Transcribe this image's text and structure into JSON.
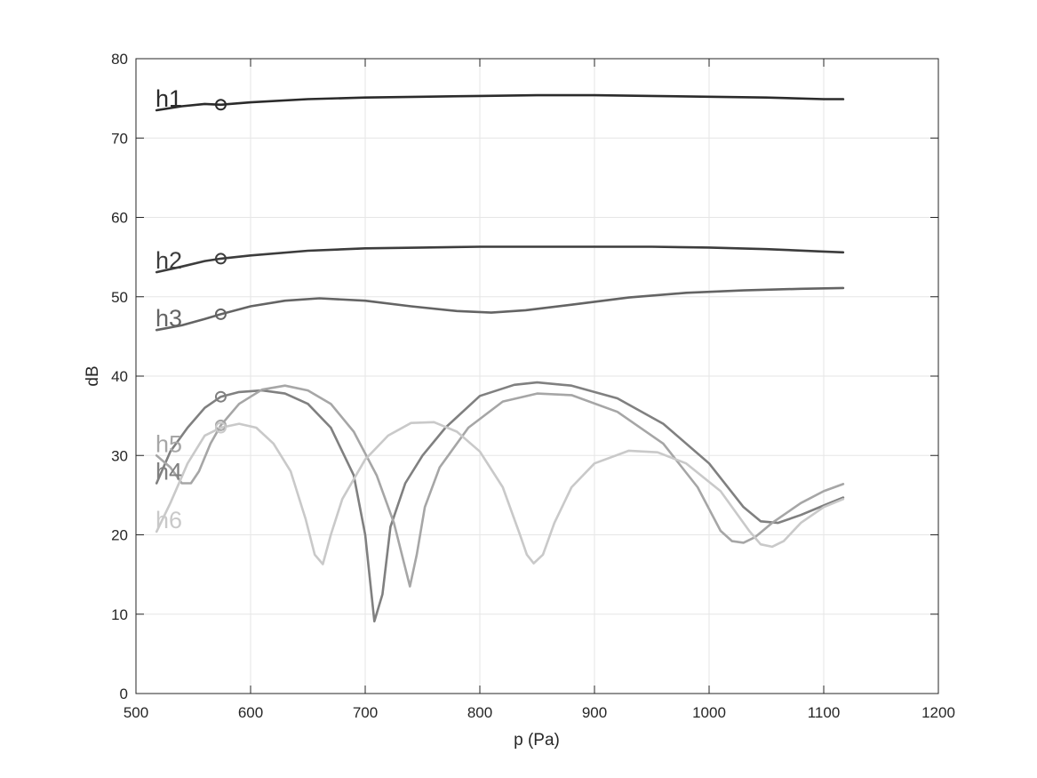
{
  "chart_data": {
    "type": "line",
    "title": "",
    "xlabel": "p (Pa)",
    "ylabel": "dB",
    "xlim": [
      500,
      1200
    ],
    "ylim": [
      0,
      80
    ],
    "xticks": [
      "500",
      "600",
      "700",
      "800",
      "900",
      "1000",
      "1100",
      "1200"
    ],
    "yticks": [
      "0",
      "10",
      "20",
      "30",
      "40",
      "50",
      "60",
      "70",
      "80"
    ],
    "grid": true,
    "legend": "none",
    "marker_x": 574,
    "series": [
      {
        "name": "h1",
        "color": "#2b2b2b",
        "points": [
          [
            518,
            73.5
          ],
          [
            540,
            74.0
          ],
          [
            560,
            74.3
          ],
          [
            574,
            74.2
          ],
          [
            600,
            74.5
          ],
          [
            650,
            74.9
          ],
          [
            700,
            75.1
          ],
          [
            750,
            75.2
          ],
          [
            800,
            75.3
          ],
          [
            850,
            75.4
          ],
          [
            900,
            75.4
          ],
          [
            950,
            75.3
          ],
          [
            1000,
            75.2
          ],
          [
            1050,
            75.1
          ],
          [
            1100,
            74.9
          ],
          [
            1117,
            74.9
          ]
        ]
      },
      {
        "name": "h2",
        "color": "#3c3c3c",
        "points": [
          [
            518,
            53.1
          ],
          [
            540,
            53.8
          ],
          [
            560,
            54.5
          ],
          [
            574,
            54.8
          ],
          [
            600,
            55.2
          ],
          [
            650,
            55.8
          ],
          [
            700,
            56.1
          ],
          [
            750,
            56.2
          ],
          [
            800,
            56.3
          ],
          [
            850,
            56.3
          ],
          [
            900,
            56.3
          ],
          [
            950,
            56.3
          ],
          [
            1000,
            56.2
          ],
          [
            1050,
            56.0
          ],
          [
            1100,
            55.7
          ],
          [
            1117,
            55.6
          ]
        ]
      },
      {
        "name": "h3",
        "color": "#646464",
        "points": [
          [
            518,
            45.8
          ],
          [
            540,
            46.4
          ],
          [
            560,
            47.2
          ],
          [
            574,
            47.8
          ],
          [
            600,
            48.8
          ],
          [
            630,
            49.5
          ],
          [
            660,
            49.8
          ],
          [
            700,
            49.5
          ],
          [
            740,
            48.8
          ],
          [
            780,
            48.2
          ],
          [
            810,
            48.0
          ],
          [
            840,
            48.3
          ],
          [
            880,
            49.0
          ],
          [
            930,
            49.9
          ],
          [
            980,
            50.5
          ],
          [
            1030,
            50.8
          ],
          [
            1080,
            51.0
          ],
          [
            1117,
            51.1
          ]
        ]
      },
      {
        "name": "h4",
        "color": "#808080",
        "points": [
          [
            518,
            26.5
          ],
          [
            530,
            30.5
          ],
          [
            545,
            33.5
          ],
          [
            560,
            36.0
          ],
          [
            574,
            37.4
          ],
          [
            590,
            38.0
          ],
          [
            610,
            38.2
          ],
          [
            630,
            37.8
          ],
          [
            650,
            36.5
          ],
          [
            670,
            33.5
          ],
          [
            690,
            27.5
          ],
          [
            700,
            20.0
          ],
          [
            708,
            9.1
          ],
          [
            715,
            12.5
          ],
          [
            722,
            21.0
          ],
          [
            735,
            26.5
          ],
          [
            750,
            30.0
          ],
          [
            770,
            33.5
          ],
          [
            800,
            37.5
          ],
          [
            830,
            38.9
          ],
          [
            850,
            39.2
          ],
          [
            880,
            38.8
          ],
          [
            920,
            37.2
          ],
          [
            960,
            34.0
          ],
          [
            1000,
            29.0
          ],
          [
            1030,
            23.5
          ],
          [
            1045,
            21.7
          ],
          [
            1060,
            21.5
          ],
          [
            1080,
            22.5
          ],
          [
            1100,
            23.7
          ],
          [
            1117,
            24.7
          ]
        ]
      },
      {
        "name": "h5",
        "color": "#a6a6a6",
        "points": [
          [
            518,
            30.0
          ],
          [
            530,
            28.5
          ],
          [
            540,
            26.5
          ],
          [
            548,
            26.5
          ],
          [
            555,
            28.0
          ],
          [
            565,
            31.5
          ],
          [
            574,
            33.8
          ],
          [
            590,
            36.5
          ],
          [
            610,
            38.3
          ],
          [
            630,
            38.8
          ],
          [
            650,
            38.2
          ],
          [
            670,
            36.5
          ],
          [
            690,
            33.0
          ],
          [
            710,
            27.5
          ],
          [
            725,
            21.5
          ],
          [
            732,
            17.5
          ],
          [
            739,
            13.5
          ],
          [
            745,
            17.5
          ],
          [
            752,
            23.5
          ],
          [
            765,
            28.5
          ],
          [
            790,
            33.5
          ],
          [
            820,
            36.8
          ],
          [
            850,
            37.8
          ],
          [
            880,
            37.6
          ],
          [
            920,
            35.5
          ],
          [
            960,
            31.5
          ],
          [
            990,
            26.0
          ],
          [
            1010,
            20.5
          ],
          [
            1020,
            19.2
          ],
          [
            1030,
            19.0
          ],
          [
            1040,
            19.7
          ],
          [
            1055,
            21.5
          ],
          [
            1080,
            24.0
          ],
          [
            1100,
            25.5
          ],
          [
            1117,
            26.4
          ]
        ]
      },
      {
        "name": "h6",
        "color": "#c9c9c9",
        "points": [
          [
            518,
            20.4
          ],
          [
            530,
            24.0
          ],
          [
            545,
            29.0
          ],
          [
            560,
            32.5
          ],
          [
            574,
            33.5
          ],
          [
            590,
            34.0
          ],
          [
            605,
            33.5
          ],
          [
            620,
            31.5
          ],
          [
            635,
            28.0
          ],
          [
            648,
            22.0
          ],
          [
            656,
            17.5
          ],
          [
            663,
            16.3
          ],
          [
            670,
            20.0
          ],
          [
            680,
            24.5
          ],
          [
            700,
            29.5
          ],
          [
            720,
            32.5
          ],
          [
            740,
            34.1
          ],
          [
            760,
            34.2
          ],
          [
            780,
            33.0
          ],
          [
            800,
            30.5
          ],
          [
            820,
            26.0
          ],
          [
            835,
            20.0
          ],
          [
            841,
            17.5
          ],
          [
            847,
            16.4
          ],
          [
            855,
            17.5
          ],
          [
            865,
            21.5
          ],
          [
            880,
            26.0
          ],
          [
            900,
            29.0
          ],
          [
            930,
            30.6
          ],
          [
            955,
            30.4
          ],
          [
            980,
            29.0
          ],
          [
            1010,
            25.5
          ],
          [
            1035,
            20.5
          ],
          [
            1045,
            18.8
          ],
          [
            1055,
            18.5
          ],
          [
            1065,
            19.2
          ],
          [
            1080,
            21.5
          ],
          [
            1100,
            23.5
          ],
          [
            1117,
            24.5
          ]
        ]
      }
    ]
  }
}
